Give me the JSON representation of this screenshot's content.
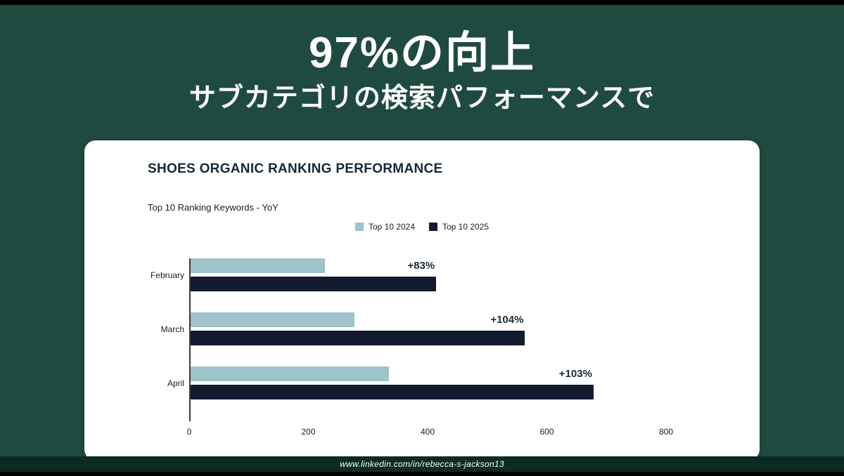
{
  "slide": {
    "title": "97%の向上",
    "subtitle": "サブカテゴリの検索パフォーマンスで",
    "footer": "www.linkedin.com/in/rebecca-s-jackson13"
  },
  "colors": {
    "background": "#1f4a40",
    "footer_bar": "#0c2b24",
    "series_2024": "#9dc3cb",
    "series_2025": "#111a2e"
  },
  "chart_data": {
    "type": "bar",
    "orientation": "horizontal",
    "title": "SHOES ORGANIC RANKING PERFORMANCE",
    "subtitle": "Top 10 Ranking Keywords - YoY",
    "categories": [
      "February",
      "March",
      "April"
    ],
    "series": [
      {
        "name": "Top 10 2024",
        "color": "#9dc3cb",
        "values": [
          225,
          275,
          333
        ]
      },
      {
        "name": "Top 10 2025",
        "color": "#111a2e",
        "values": [
          412,
          561,
          676
        ]
      }
    ],
    "annotations": [
      "+83%",
      "+104%",
      "+103%"
    ],
    "xlim": [
      0,
      800
    ],
    "xticks": [
      0,
      200,
      400,
      600,
      800
    ],
    "legend_position": "top",
    "grid": false
  }
}
